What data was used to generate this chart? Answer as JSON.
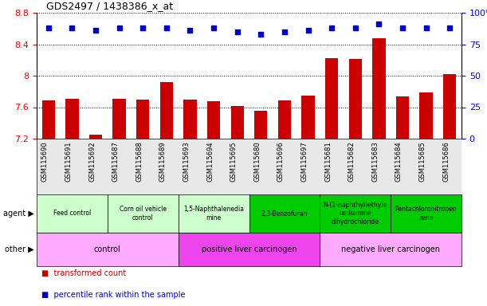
{
  "title": "GDS2497 / 1438386_x_at",
  "samples": [
    "GSM115690",
    "GSM115691",
    "GSM115692",
    "GSM115687",
    "GSM115688",
    "GSM115689",
    "GSM115693",
    "GSM115694",
    "GSM115695",
    "GSM115680",
    "GSM115696",
    "GSM115697",
    "GSM115681",
    "GSM115682",
    "GSM115683",
    "GSM115684",
    "GSM115685",
    "GSM115686"
  ],
  "bar_values": [
    7.69,
    7.71,
    7.25,
    7.71,
    7.7,
    7.92,
    7.7,
    7.68,
    7.62,
    7.55,
    7.69,
    7.75,
    8.22,
    8.21,
    8.48,
    7.74,
    7.79,
    8.02
  ],
  "dot_values": [
    88,
    88,
    86,
    88,
    88,
    88,
    86,
    88,
    85,
    83,
    85,
    86,
    88,
    88,
    91,
    88,
    88,
    88
  ],
  "ylim_left": [
    7.2,
    8.8
  ],
  "ylim_right": [
    0,
    100
  ],
  "yticks_left": [
    7.2,
    7.6,
    8.0,
    8.4,
    8.8
  ],
  "yticks_right": [
    0,
    25,
    50,
    75,
    100
  ],
  "ytick_right_labels": [
    "0",
    "25",
    "50",
    "75",
    "100%"
  ],
  "bar_color": "#cc0000",
  "dot_color": "#0000cc",
  "agent_groups": [
    {
      "label": "Feed control",
      "start": 0,
      "end": 3,
      "color": "#ccffcc"
    },
    {
      "label": "Corn oil vehicle\ncontrol",
      "start": 3,
      "end": 6,
      "color": "#ccffcc"
    },
    {
      "label": "1,5-Naphthalenedia\nmine",
      "start": 6,
      "end": 9,
      "color": "#ccffcc"
    },
    {
      "label": "2,3-Benzofuran",
      "start": 9,
      "end": 12,
      "color": "#00cc00"
    },
    {
      "label": "N-(1-naphthyl)ethyle\nnediamine\ndihydrochloride",
      "start": 12,
      "end": 15,
      "color": "#00cc00"
    },
    {
      "label": "Pentachloronitroben\nzene",
      "start": 15,
      "end": 18,
      "color": "#00cc00"
    }
  ],
  "other_groups": [
    {
      "label": "control",
      "start": 0,
      "end": 6,
      "color": "#ffaaff"
    },
    {
      "label": "positive liver carcinogen",
      "start": 6,
      "end": 12,
      "color": "#ee44ee"
    },
    {
      "label": "negative liver carcinogen",
      "start": 12,
      "end": 18,
      "color": "#ffaaff"
    }
  ],
  "agent_label": "agent",
  "other_label": "other",
  "legend_bar_label": "transformed count",
  "legend_dot_label": "percentile rank within the sample"
}
